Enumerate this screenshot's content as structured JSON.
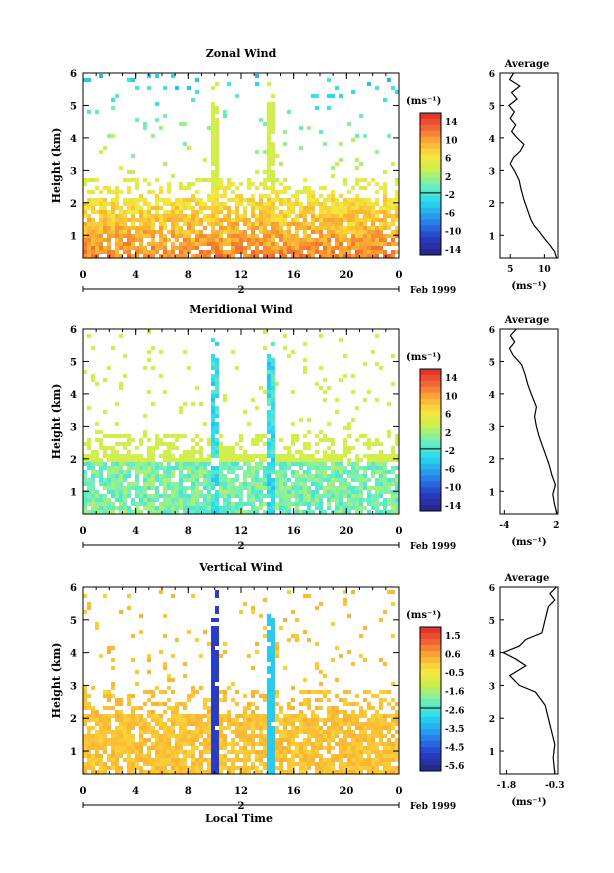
{
  "date_label": "Feb 1999",
  "xlabel": "Local Time",
  "ylabel": "Height (km)",
  "unit": "(ms⁻¹)",
  "avg_xlabel": "(ms⁻¹)",
  "avg_title": "Average",
  "chart_data": [
    {
      "type": "heatmap",
      "title": "Zonal Wind",
      "xlabel": "Local Time",
      "ylabel": "Height (km)",
      "x_ticks": [
        "0",
        "4",
        "8",
        "12",
        "16",
        "20",
        "0"
      ],
      "xlim": [
        0,
        24
      ],
      "day_label": "2",
      "y_ticks": [
        "1",
        "2",
        "3",
        "4",
        "5",
        "6"
      ],
      "ylim": [
        0.3,
        6
      ],
      "colorbar_ticks": [
        "14",
        "10",
        "6",
        "2",
        "-2",
        "-6",
        "-10",
        "-14"
      ],
      "colorbar_range": [
        -16,
        16
      ],
      "average_profile": {
        "title": "Average",
        "xlabel": "(ms⁻¹)",
        "x_ticks": [
          "5",
          "10"
        ],
        "xlim": [
          3.5,
          12
        ],
        "points": [
          [
            11.8,
            0.3
          ],
          [
            11.5,
            0.5
          ],
          [
            10.8,
            0.7
          ],
          [
            10.0,
            0.9
          ],
          [
            9.3,
            1.1
          ],
          [
            8.5,
            1.3
          ],
          [
            8.0,
            1.5
          ],
          [
            7.5,
            1.8
          ],
          [
            7.0,
            2.1
          ],
          [
            6.6,
            2.4
          ],
          [
            6.3,
            2.7
          ],
          [
            5.6,
            3.0
          ],
          [
            5.0,
            3.2
          ],
          [
            5.5,
            3.4
          ],
          [
            6.5,
            3.6
          ],
          [
            7.0,
            3.8
          ],
          [
            6.0,
            4.0
          ],
          [
            5.2,
            4.2
          ],
          [
            5.8,
            4.4
          ],
          [
            5.0,
            4.6
          ],
          [
            5.6,
            4.8
          ],
          [
            4.8,
            5.0
          ],
          [
            6.0,
            5.2
          ],
          [
            5.2,
            5.4
          ],
          [
            6.4,
            5.6
          ],
          [
            4.9,
            5.8
          ],
          [
            5.5,
            6.0
          ]
        ]
      }
    },
    {
      "type": "heatmap",
      "title": "Meridional Wind",
      "xlabel": "Local Time",
      "ylabel": "Height (km)",
      "x_ticks": [
        "0",
        "4",
        "8",
        "12",
        "16",
        "20",
        "0"
      ],
      "xlim": [
        0,
        24
      ],
      "day_label": "2",
      "y_ticks": [
        "1",
        "2",
        "3",
        "4",
        "5",
        "6"
      ],
      "ylim": [
        0.3,
        6
      ],
      "colorbar_ticks": [
        "14",
        "10",
        "6",
        "2",
        "-2",
        "-6",
        "-10",
        "-14"
      ],
      "colorbar_range": [
        -16,
        16
      ],
      "average_profile": {
        "title": "Average",
        "xlabel": "(ms⁻¹)",
        "x_ticks": [
          "-4",
          "2"
        ],
        "xlim": [
          -4.5,
          2.2
        ],
        "points": [
          [
            2.1,
            0.3
          ],
          [
            1.8,
            0.6
          ],
          [
            1.6,
            0.9
          ],
          [
            1.9,
            1.2
          ],
          [
            1.5,
            1.5
          ],
          [
            1.2,
            1.8
          ],
          [
            0.8,
            2.1
          ],
          [
            0.4,
            2.4
          ],
          [
            0.0,
            2.7
          ],
          [
            -0.3,
            3.0
          ],
          [
            -0.5,
            3.3
          ],
          [
            -0.3,
            3.6
          ],
          [
            -0.6,
            3.8
          ],
          [
            -0.9,
            4.0
          ],
          [
            -1.3,
            4.3
          ],
          [
            -1.6,
            4.6
          ],
          [
            -2.0,
            4.9
          ],
          [
            -3.0,
            5.2
          ],
          [
            -3.4,
            5.4
          ],
          [
            -2.8,
            5.6
          ],
          [
            -3.3,
            5.8
          ],
          [
            -2.6,
            6.0
          ]
        ]
      }
    },
    {
      "type": "heatmap",
      "title": "Vertical Wind",
      "xlabel": "Local Time",
      "ylabel": "Height (km)",
      "x_ticks": [
        "0",
        "4",
        "8",
        "12",
        "16",
        "20",
        "0"
      ],
      "xlim": [
        0,
        24
      ],
      "day_label": "2",
      "y_ticks": [
        "1",
        "2",
        "3",
        "4",
        "5",
        "6"
      ],
      "ylim": [
        0.3,
        6
      ],
      "colorbar_ticks": [
        "1.5",
        "0.6",
        "-0.5",
        "-1.6",
        "-2.6",
        "-3.5",
        "-4.5",
        "-5.6"
      ],
      "colorbar_range": [
        -6.2,
        2.2
      ],
      "average_profile": {
        "title": "Average",
        "xlabel": "(ms⁻¹)",
        "x_ticks": [
          "-1.8",
          "-0.3"
        ],
        "xlim": [
          -2.0,
          -0.2
        ],
        "points": [
          [
            -0.3,
            0.3
          ],
          [
            -0.35,
            0.8
          ],
          [
            -0.3,
            1.2
          ],
          [
            -0.4,
            1.6
          ],
          [
            -0.5,
            2.0
          ],
          [
            -0.6,
            2.4
          ],
          [
            -0.9,
            2.8
          ],
          [
            -1.4,
            3.0
          ],
          [
            -1.7,
            3.3
          ],
          [
            -1.2,
            3.6
          ],
          [
            -1.5,
            3.8
          ],
          [
            -1.9,
            4.0
          ],
          [
            -1.4,
            4.2
          ],
          [
            -1.2,
            4.4
          ],
          [
            -0.7,
            4.6
          ],
          [
            -0.6,
            5.0
          ],
          [
            -0.5,
            5.4
          ],
          [
            -0.3,
            5.6
          ],
          [
            -0.45,
            5.8
          ],
          [
            -0.25,
            6.0
          ]
        ]
      }
    }
  ]
}
